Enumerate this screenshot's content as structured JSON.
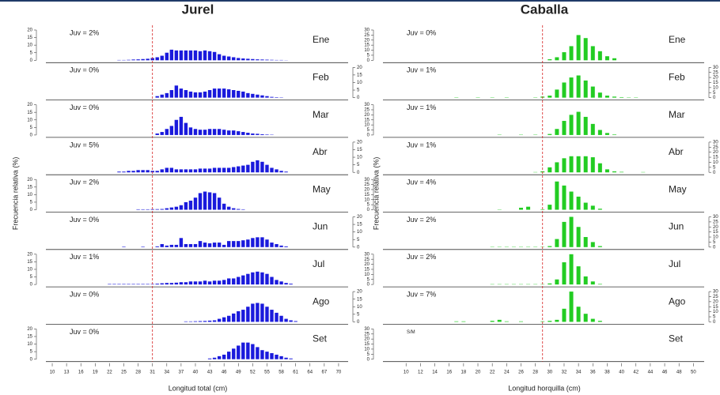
{
  "chart_data": [
    {
      "type": "bar",
      "title": "Jurel",
      "x_label": "Longitud total (cm)",
      "y_label": "Frecuencia relativa (%)",
      "color": "#1a1adc",
      "reference_x": 31,
      "x": [
        20,
        21,
        22,
        23,
        24,
        25,
        26,
        27,
        28,
        29,
        30,
        31,
        32,
        33,
        34,
        35,
        36,
        37,
        38,
        39,
        40,
        41,
        42,
        43,
        44,
        45,
        46,
        47,
        48,
        49,
        50,
        51,
        52,
        53,
        54,
        55,
        56,
        57,
        58,
        59,
        60,
        61,
        62,
        63,
        64
      ],
      "xlim": [
        9,
        72
      ],
      "xticks": [
        10,
        13,
        16,
        19,
        22,
        25,
        28,
        31,
        34,
        37,
        40,
        43,
        46,
        49,
        52,
        55,
        58,
        61,
        64,
        67,
        70
      ],
      "ylim": [
        0,
        20
      ],
      "yticks": [
        0,
        5,
        10,
        15,
        20
      ],
      "series": [
        {
          "name": "Ene",
          "annotation": "Juv = 2%",
          "values": [
            0,
            0,
            0,
            0,
            0.2,
            0.2,
            0.3,
            0.5,
            0.6,
            0.8,
            1,
            1.5,
            2,
            3,
            5,
            7,
            6.5,
            6.5,
            6.5,
            6.5,
            6.5,
            6,
            6.5,
            6,
            5.5,
            4,
            3,
            2.5,
            2,
            1.5,
            1.2,
            1,
            0.8,
            0.6,
            0.5,
            0.4,
            0.3,
            0.2,
            0.2,
            0.1,
            0,
            0,
            0,
            0,
            0
          ]
        },
        {
          "name": "Feb",
          "annotation": "Juv = 0%",
          "values": [
            0,
            0,
            0,
            0,
            0,
            0,
            0,
            0,
            0,
            0,
            0,
            0,
            1,
            2,
            3,
            5,
            8,
            6,
            5,
            4,
            3.5,
            3.5,
            4,
            5,
            6,
            6,
            6,
            5.5,
            5,
            4.5,
            4,
            3,
            2.5,
            2,
            1.5,
            1,
            0.5,
            0.3,
            0.2,
            0,
            0,
            0,
            0,
            0,
            0
          ]
        },
        {
          "name": "Mar",
          "annotation": "Juv = 0%",
          "values": [
            0,
            0,
            0,
            0,
            0,
            0,
            0,
            0,
            0,
            0,
            0,
            0,
            1,
            2,
            4,
            6,
            10,
            12,
            8,
            5,
            4,
            3.5,
            3.5,
            4,
            4,
            4,
            3.5,
            3,
            3,
            2.5,
            2,
            1.5,
            1,
            0.8,
            0.5,
            0.3,
            0.2,
            0,
            0,
            0,
            0,
            0,
            0,
            0,
            0
          ]
        },
        {
          "name": "Abr",
          "annotation": "Juv = 5%",
          "values": [
            0,
            0,
            0,
            0,
            0.5,
            0.5,
            1,
            1,
            1.5,
            1.5,
            1.5,
            1,
            1,
            2,
            3,
            3,
            2,
            2,
            2,
            2,
            2,
            2.5,
            2.5,
            2.5,
            3,
            3,
            3,
            3,
            3.5,
            4,
            4.5,
            5,
            7,
            8,
            7,
            5,
            3,
            2,
            1,
            0.5,
            0,
            0,
            0,
            0,
            0
          ]
        },
        {
          "name": "May",
          "annotation": "Juv = 2%",
          "values": [
            0,
            0,
            0,
            0,
            0,
            0,
            0,
            0,
            0.3,
            0.3,
            0.3,
            0.4,
            0.4,
            0.5,
            1,
            1.5,
            2,
            3,
            5,
            6,
            8,
            11,
            12,
            11.5,
            11,
            8,
            4,
            2,
            1,
            0.5,
            0.3,
            0,
            0,
            0,
            0,
            0,
            0,
            0,
            0,
            0,
            0,
            0,
            0,
            0,
            0
          ]
        },
        {
          "name": "Jun",
          "annotation": "Juv = 0%",
          "values": [
            0,
            0,
            0,
            0,
            0,
            0.3,
            0,
            0,
            0,
            0.3,
            0,
            0,
            0.5,
            2,
            1,
            1.5,
            1.5,
            6,
            2,
            2,
            2,
            4,
            3,
            2.5,
            3,
            3,
            1.5,
            4,
            4,
            4,
            4.5,
            5,
            6,
            6.5,
            6.5,
            5,
            3,
            2,
            1,
            0.5,
            0,
            0,
            0,
            0,
            0
          ]
        },
        {
          "name": "Jul",
          "annotation": "Juv = 1%",
          "values": [
            0,
            0,
            0.3,
            0.3,
            0.3,
            0.3,
            0.3,
            0.3,
            0.3,
            0.3,
            0.3,
            0.3,
            0.5,
            0.8,
            1,
            1,
            1.2,
            1.5,
            1.5,
            2,
            2,
            2,
            2.5,
            2,
            2.5,
            2.5,
            3,
            4,
            4,
            5,
            6,
            7,
            8,
            8.5,
            8,
            7,
            5,
            3,
            2,
            1,
            0.5,
            0,
            0,
            0,
            0
          ]
        },
        {
          "name": "Ago",
          "annotation": "Juv = 0%",
          "values": [
            0,
            0,
            0,
            0,
            0,
            0,
            0,
            0,
            0,
            0,
            0,
            0,
            0,
            0,
            0,
            0,
            0,
            0,
            0.3,
            0.3,
            0.4,
            0.5,
            0.6,
            0.8,
            1,
            2,
            3,
            4,
            5.5,
            7,
            8,
            10,
            12,
            12.5,
            12,
            10,
            8,
            6,
            4,
            2,
            1,
            0.5,
            0,
            0,
            0
          ]
        },
        {
          "name": "Set",
          "annotation": "Juv = 0%",
          "values": [
            0,
            0,
            0,
            0,
            0,
            0,
            0,
            0,
            0,
            0,
            0,
            0,
            0,
            0,
            0,
            0,
            0,
            0,
            0,
            0,
            0,
            0,
            0,
            0.5,
            1,
            2,
            3,
            5,
            7,
            9,
            11,
            11,
            10,
            8,
            6,
            5,
            4,
            3,
            2,
            1,
            0.5,
            0,
            0,
            0,
            0
          ]
        }
      ]
    },
    {
      "type": "bar",
      "title": "Caballa",
      "x_label": "Longitud horquilla (cm)",
      "y_label": "Frecuencia relativa (%)",
      "color": "#22cc22",
      "reference_x": 29,
      "x": [
        15,
        16,
        17,
        18,
        19,
        20,
        21,
        22,
        23,
        24,
        25,
        26,
        27,
        28,
        29,
        30,
        31,
        32,
        33,
        34,
        35,
        36,
        37,
        38,
        39,
        40,
        41,
        42,
        43
      ],
      "xlim": [
        7,
        51.5
      ],
      "xticks": [
        10,
        12,
        14,
        16,
        18,
        20,
        22,
        24,
        26,
        28,
        30,
        32,
        34,
        36,
        38,
        40,
        42,
        44,
        46,
        48,
        50
      ],
      "ylim": [
        0,
        30
      ],
      "yticks": [
        0,
        5,
        10,
        15,
        20,
        25,
        30
      ],
      "series": [
        {
          "name": "Ene",
          "annotation": "Juv = 0%",
          "values": [
            0,
            0,
            0,
            0,
            0,
            0,
            0,
            0,
            0,
            0,
            0,
            0,
            0,
            0,
            0,
            1,
            3,
            8,
            14,
            25,
            22,
            14,
            9,
            4,
            2,
            0,
            0,
            0,
            0
          ]
        },
        {
          "name": "Feb",
          "annotation": "Juv = 1%",
          "values": [
            0,
            0,
            0.3,
            0,
            0,
            0.3,
            0,
            0.3,
            0,
            0.3,
            0,
            0,
            0,
            0.3,
            1,
            2,
            8,
            15,
            20,
            22,
            17,
            11,
            5,
            2,
            1,
            0.5,
            0.3,
            0.3,
            0
          ]
        },
        {
          "name": "Mar",
          "annotation": "Juv = 1%",
          "values": [
            0,
            0,
            0,
            0,
            0,
            0,
            0,
            0,
            0.3,
            0,
            0,
            0.3,
            0,
            0.3,
            0,
            1,
            6,
            14,
            20,
            23,
            18,
            11,
            5,
            2,
            0.5,
            0,
            0,
            0,
            0
          ]
        },
        {
          "name": "Abr",
          "annotation": "Juv = 1%",
          "values": [
            0,
            0,
            0,
            0,
            0,
            0,
            0,
            0,
            0,
            0,
            0,
            0,
            0,
            0.3,
            1,
            5,
            10,
            14,
            16,
            16,
            16,
            15,
            9,
            3,
            1,
            0.5,
            0,
            0,
            0.3
          ]
        },
        {
          "name": "May",
          "annotation": "Juv = 4%",
          "values": [
            0,
            0,
            0,
            0,
            0,
            0,
            0,
            0,
            0.3,
            0,
            0,
            2,
            3,
            0,
            0.5,
            5,
            28,
            24,
            18,
            13,
            7,
            4,
            1,
            0,
            0,
            0,
            0,
            0,
            0
          ]
        },
        {
          "name": "Jun",
          "annotation": "Juv = 2%",
          "values": [
            0,
            0,
            0,
            0,
            0,
            0,
            0,
            0.3,
            0.3,
            0.3,
            0.3,
            0.3,
            0.3,
            0.3,
            0.3,
            1,
            8,
            25,
            30,
            20,
            10,
            5,
            1,
            0,
            0,
            0,
            0,
            0,
            0
          ]
        },
        {
          "name": "Jul",
          "annotation": "Juv = 2%",
          "values": [
            0,
            0,
            0,
            0,
            0,
            0,
            0,
            0.3,
            0.3,
            0.3,
            0.3,
            0.3,
            0.3,
            0.3,
            0.3,
            1,
            5,
            22,
            30,
            18,
            8,
            3,
            0.5,
            0,
            0,
            0,
            0,
            0,
            0
          ]
        },
        {
          "name": "Ago",
          "annotation": "Juv = 7%",
          "values": [
            0,
            0,
            0.5,
            0.5,
            0,
            0,
            0,
            1,
            2,
            0.5,
            0,
            0.5,
            0,
            0,
            0.5,
            1,
            2,
            13,
            30,
            15,
            8,
            3,
            1,
            0,
            0,
            0,
            0,
            0,
            0
          ]
        },
        {
          "name": "Set",
          "annotation": "S/M",
          "values": [
            null,
            null,
            null,
            null,
            null,
            null,
            null,
            null,
            null,
            null,
            null,
            null,
            null,
            null,
            null,
            null,
            null,
            null,
            null,
            null,
            null,
            null,
            null,
            null,
            null,
            null,
            null,
            null,
            null
          ]
        }
      ]
    }
  ]
}
